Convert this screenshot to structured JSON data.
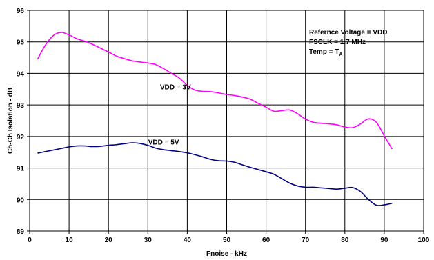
{
  "chart_data": {
    "type": "line",
    "xlabel": "Fnoise - kHz",
    "ylabel": "Ch-Ch Isolation - dB",
    "xlim": [
      0,
      100
    ],
    "ylim": [
      89,
      96
    ],
    "xticks": [
      "0",
      "10",
      "20",
      "30",
      "40",
      "50",
      "60",
      "70",
      "80",
      "90",
      "100"
    ],
    "yticks": [
      "89",
      "90",
      "91",
      "92",
      "93",
      "94",
      "95",
      "96"
    ],
    "grid": true,
    "note": {
      "line1": "Refernce Voltage = VDD",
      "line2": "FSCLK = 1.7 MHz",
      "line3_main": "Temp = T",
      "line3_sub": "A"
    },
    "series": [
      {
        "name": "VDD = 3V",
        "color": "#ff00ff",
        "x": [
          2,
          4,
          6,
          8,
          10,
          12,
          14,
          16,
          18,
          20,
          22,
          24,
          26,
          28,
          30,
          32,
          34,
          36,
          38,
          40,
          42,
          44,
          46,
          48,
          50,
          52,
          54,
          56,
          58,
          60,
          62,
          64,
          66,
          68,
          70,
          72,
          74,
          76,
          78,
          80,
          82,
          84,
          86,
          88,
          90,
          92
        ],
        "values": [
          94.45,
          94.9,
          95.2,
          95.3,
          95.22,
          95.1,
          95.02,
          94.92,
          94.8,
          94.68,
          94.55,
          94.47,
          94.4,
          94.36,
          94.33,
          94.28,
          94.15,
          94.0,
          93.85,
          93.62,
          93.47,
          93.43,
          93.42,
          93.38,
          93.33,
          93.3,
          93.25,
          93.18,
          93.05,
          92.93,
          92.8,
          92.82,
          92.84,
          92.72,
          92.55,
          92.45,
          92.42,
          92.4,
          92.37,
          92.3,
          92.28,
          92.4,
          92.56,
          92.45,
          92.02,
          91.6
        ]
      },
      {
        "name": "VDD = 5V",
        "color": "#000080",
        "x": [
          2,
          4,
          6,
          8,
          10,
          12,
          14,
          16,
          18,
          20,
          22,
          24,
          26,
          28,
          30,
          32,
          34,
          36,
          38,
          40,
          42,
          44,
          46,
          48,
          50,
          52,
          54,
          56,
          58,
          60,
          62,
          64,
          66,
          68,
          70,
          72,
          74,
          76,
          78,
          80,
          82,
          84,
          86,
          88,
          90,
          92
        ],
        "values": [
          91.47,
          91.52,
          91.57,
          91.62,
          91.67,
          91.7,
          91.7,
          91.68,
          91.69,
          91.72,
          91.74,
          91.77,
          91.8,
          91.78,
          91.72,
          91.63,
          91.58,
          91.55,
          91.52,
          91.48,
          91.42,
          91.35,
          91.27,
          91.23,
          91.22,
          91.18,
          91.1,
          91.02,
          90.95,
          90.88,
          90.8,
          90.66,
          90.52,
          90.43,
          90.39,
          90.39,
          90.37,
          90.35,
          90.33,
          90.36,
          90.38,
          90.25,
          90.0,
          89.82,
          89.83,
          89.88
        ]
      }
    ],
    "series_label_pos": [
      {
        "x": 37,
        "y": 93.5
      },
      {
        "x": 34,
        "y": 91.75
      }
    ]
  }
}
